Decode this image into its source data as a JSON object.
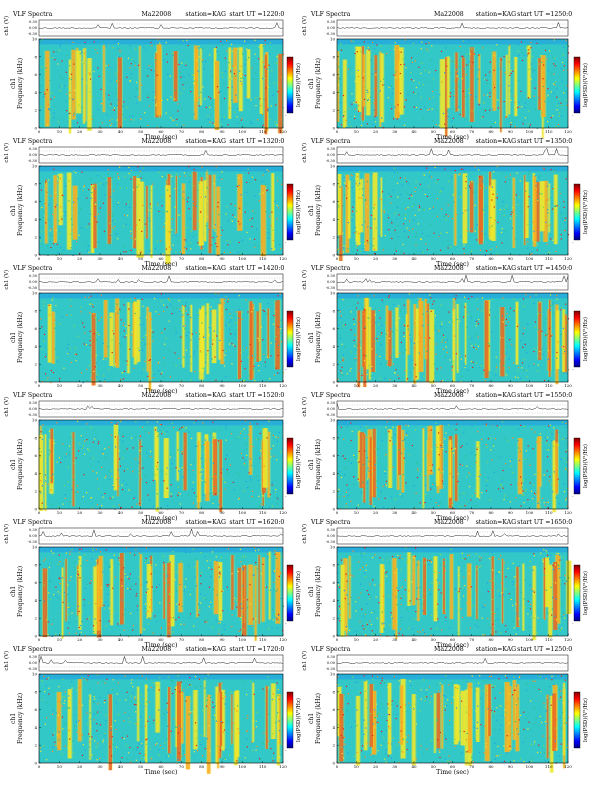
{
  "figure": {
    "colors": {
      "spectrogram_base": "#33c8c8",
      "colorbar": [
        "#000080",
        "#0000ff",
        "#0080ff",
        "#00ffff",
        "#80ff80",
        "#ffff00",
        "#ff8000",
        "#ff0000",
        "#800000"
      ],
      "speckle": [
        "#1f9fe6",
        "#2fbd8a",
        "#84d84a",
        "#f0e82a",
        "#ff8c1a",
        "#e51e1e"
      ]
    }
  },
  "chart_data": [
    {
      "type": "heatmap",
      "title": "VLF Spectra",
      "date": "Ma22008",
      "station": "station=KAG",
      "start_ut": "start UT =1220:0",
      "xlabel": "Time (sec)",
      "ylabel": "Frequency (kHz)",
      "ylabel_prefix": "ch1",
      "top_ylabel": "ch1 (V)",
      "colorbar_label": "log(PSD)(V²/Hz)",
      "xticks": [
        "0",
        "10",
        "20",
        "30",
        "40",
        "50",
        "60",
        "70",
        "80",
        "90",
        "100",
        "110",
        "120"
      ],
      "yticks": [
        "0",
        "2",
        "4",
        "6",
        "8",
        "10"
      ],
      "top_yticks": [
        "0.30",
        "0.00",
        "-0.30"
      ],
      "xlim": [
        0,
        120
      ],
      "ylim": [
        0,
        10
      ],
      "top_ylim": [
        -0.3,
        0.3
      ],
      "grid": false
    },
    {
      "type": "heatmap",
      "title": "VLF Spectra",
      "date": "Ma22008",
      "station": "station=KAG",
      "start_ut": "start UT =1250:0",
      "xlabel": "Time (sec)",
      "ylabel": "Frequency (kHz)",
      "ylabel_prefix": "ch1",
      "top_ylabel": "ch1 (V)",
      "colorbar_label": "log(PSD)(V²/Hz)",
      "xticks": [
        "0",
        "10",
        "20",
        "30",
        "40",
        "50",
        "60",
        "70",
        "80",
        "90",
        "100",
        "110",
        "120"
      ],
      "yticks": [
        "0",
        "2",
        "4",
        "6",
        "8",
        "10"
      ],
      "top_yticks": [
        "0.30",
        "0.00",
        "-0.30"
      ],
      "xlim": [
        0,
        120
      ],
      "ylim": [
        0,
        10
      ],
      "top_ylim": [
        -0.3,
        0.3
      ],
      "grid": false
    },
    {
      "type": "heatmap",
      "title": "VLF Spectra",
      "date": "Ma22008",
      "station": "station=KAG",
      "start_ut": "start UT =1320:0",
      "xlabel": "Time (sec)",
      "ylabel": "Frequency (kHz)",
      "ylabel_prefix": "ch1",
      "top_ylabel": "ch1 (V)",
      "colorbar_label": "log(PSD)(V²/Hz)",
      "xticks": [
        "0",
        "10",
        "20",
        "30",
        "40",
        "50",
        "60",
        "70",
        "80",
        "90",
        "100",
        "110",
        "120"
      ],
      "yticks": [
        "0",
        "2",
        "4",
        "6",
        "8",
        "10"
      ],
      "top_yticks": [
        "0.30",
        "0.00",
        "-0.30"
      ],
      "xlim": [
        0,
        120
      ],
      "ylim": [
        0,
        10
      ],
      "top_ylim": [
        -0.3,
        0.3
      ],
      "grid": false
    },
    {
      "type": "heatmap",
      "title": "VLF Spectra",
      "date": "Ma22008",
      "station": "station=KAG",
      "start_ut": "start UT =1350:0",
      "xlabel": "Time (sec)",
      "ylabel": "Frequency (kHz)",
      "ylabel_prefix": "ch1",
      "top_ylabel": "ch1 (V)",
      "colorbar_label": "log(PSD)(V²/Hz)",
      "xticks": [
        "0",
        "10",
        "20",
        "30",
        "40",
        "50",
        "60",
        "70",
        "80",
        "90",
        "100",
        "110",
        "120"
      ],
      "yticks": [
        "0",
        "2",
        "4",
        "6",
        "8",
        "10"
      ],
      "top_yticks": [
        "0.30",
        "0.00",
        "-0.30"
      ],
      "xlim": [
        0,
        120
      ],
      "ylim": [
        0,
        10
      ],
      "top_ylim": [
        -0.3,
        0.3
      ],
      "grid": false
    },
    {
      "type": "heatmap",
      "title": "VLF Spectra",
      "date": "Ma22008",
      "station": "station=KAG",
      "start_ut": "start UT =1420:0",
      "xlabel": "Time (sec)",
      "ylabel": "Frequency (kHz)",
      "ylabel_prefix": "ch1",
      "top_ylabel": "ch1 (V)",
      "colorbar_label": "log(PSD)(V²/Hz)",
      "xticks": [
        "0",
        "10",
        "20",
        "30",
        "40",
        "50",
        "60",
        "70",
        "80",
        "90",
        "100",
        "110",
        "120"
      ],
      "yticks": [
        "0",
        "2",
        "4",
        "6",
        "8",
        "10"
      ],
      "top_yticks": [
        "0.30",
        "0.00",
        "-0.30"
      ],
      "xlim": [
        0,
        120
      ],
      "ylim": [
        0,
        10
      ],
      "top_ylim": [
        -0.3,
        0.3
      ],
      "grid": false
    },
    {
      "type": "heatmap",
      "title": "VLF Spectra",
      "date": "Ma22008",
      "station": "station=KAG",
      "start_ut": "start UT =1450:0",
      "xlabel": "Time (sec)",
      "ylabel": "Frequency (kHz)",
      "ylabel_prefix": "ch1",
      "top_ylabel": "ch1 (V)",
      "colorbar_label": "log(PSD)(V²/Hz)",
      "xticks": [
        "0",
        "10",
        "20",
        "30",
        "40",
        "50",
        "60",
        "70",
        "80",
        "90",
        "100",
        "110",
        "120"
      ],
      "yticks": [
        "0",
        "2",
        "4",
        "6",
        "8",
        "10"
      ],
      "top_yticks": [
        "0.30",
        "0.00",
        "-0.30"
      ],
      "xlim": [
        0,
        120
      ],
      "ylim": [
        0,
        10
      ],
      "top_ylim": [
        -0.3,
        0.3
      ],
      "grid": false
    },
    {
      "type": "heatmap",
      "title": "VLF Spectra",
      "date": "Ma22008",
      "station": "station=KAG",
      "start_ut": "start UT =1520:0",
      "xlabel": "Time (sec)",
      "ylabel": "Frequency (kHz)",
      "ylabel_prefix": "ch1",
      "top_ylabel": "ch1 (V)",
      "colorbar_label": "log(PSD)(V²/Hz)",
      "xticks": [
        "0",
        "10",
        "20",
        "30",
        "40",
        "50",
        "60",
        "70",
        "80",
        "90",
        "100",
        "110",
        "120"
      ],
      "yticks": [
        "0",
        "2",
        "4",
        "6",
        "8",
        "10"
      ],
      "top_yticks": [
        "0.30",
        "0.00",
        "-0.30"
      ],
      "xlim": [
        0,
        120
      ],
      "ylim": [
        0,
        10
      ],
      "top_ylim": [
        -0.3,
        0.3
      ],
      "grid": false
    },
    {
      "type": "heatmap",
      "title": "VLF Spectra",
      "date": "Ma22008",
      "station": "station=KAG",
      "start_ut": "start UT =1550:0",
      "xlabel": "Time (sec)",
      "ylabel": "Frequency (kHz)",
      "ylabel_prefix": "ch1",
      "top_ylabel": "ch1 (V)",
      "colorbar_label": "log(PSD)(V²/Hz)",
      "xticks": [
        "0",
        "10",
        "20",
        "30",
        "40",
        "50",
        "60",
        "70",
        "80",
        "90",
        "100",
        "110",
        "120"
      ],
      "yticks": [
        "0",
        "2",
        "4",
        "6",
        "8",
        "10"
      ],
      "top_yticks": [
        "0.30",
        "0.00",
        "-0.30"
      ],
      "xlim": [
        0,
        120
      ],
      "ylim": [
        0,
        10
      ],
      "top_ylim": [
        -0.3,
        0.3
      ],
      "grid": false
    },
    {
      "type": "heatmap",
      "title": "VLF Spectra",
      "date": "Ma22008",
      "station": "station=KAG",
      "start_ut": "start UT =1620:0",
      "xlabel": "Time (sec)",
      "ylabel": "Frequency (kHz)",
      "ylabel_prefix": "ch1",
      "top_ylabel": "ch1 (V)",
      "colorbar_label": "log(PSD)(V²/Hz)",
      "xticks": [
        "0",
        "10",
        "20",
        "30",
        "40",
        "50",
        "60",
        "70",
        "80",
        "90",
        "100",
        "110",
        "120"
      ],
      "yticks": [
        "0",
        "2",
        "4",
        "6",
        "8",
        "10"
      ],
      "top_yticks": [
        "0.30",
        "0.00",
        "-0.30"
      ],
      "xlim": [
        0,
        120
      ],
      "ylim": [
        0,
        10
      ],
      "top_ylim": [
        -0.3,
        0.3
      ],
      "grid": false
    },
    {
      "type": "heatmap",
      "title": "VLF Spectra",
      "date": "Ma22008",
      "station": "station=KAG",
      "start_ut": "start UT =1650:0",
      "xlabel": "Time (sec)",
      "ylabel": "Frequency (kHz)",
      "ylabel_prefix": "ch1",
      "top_ylabel": "ch1 (V)",
      "colorbar_label": "log(PSD)(V²/Hz)",
      "xticks": [
        "0",
        "10",
        "20",
        "30",
        "40",
        "50",
        "60",
        "70",
        "80",
        "90",
        "100",
        "110",
        "120"
      ],
      "yticks": [
        "0",
        "2",
        "4",
        "6",
        "8",
        "10"
      ],
      "top_yticks": [
        "0.30",
        "0.00",
        "-0.30"
      ],
      "xlim": [
        0,
        120
      ],
      "ylim": [
        0,
        10
      ],
      "top_ylim": [
        -0.3,
        0.3
      ],
      "grid": false
    },
    {
      "type": "heatmap",
      "title": "VLF Spectra",
      "date": "Ma22008",
      "station": "station=KAG",
      "start_ut": "start UT =1720:0",
      "xlabel": "Time (sec)",
      "ylabel": "Frequency (kHz)",
      "ylabel_prefix": "ch1",
      "top_ylabel": "ch1 (V)",
      "colorbar_label": "log(PSD)(V²/Hz)",
      "xticks": [
        "0",
        "10",
        "20",
        "30",
        "40",
        "50",
        "60",
        "70",
        "80",
        "90",
        "100",
        "110",
        "120"
      ],
      "yticks": [
        "0",
        "2",
        "4",
        "6",
        "8",
        "10"
      ],
      "top_yticks": [
        "0.30",
        "0.00",
        "-0.30"
      ],
      "xlim": [
        0,
        120
      ],
      "ylim": [
        0,
        10
      ],
      "top_ylim": [
        -0.3,
        0.3
      ],
      "grid": false
    },
    {
      "type": "heatmap",
      "title": "VLF Spectra",
      "date": "Ma22008",
      "station": "station=KAG",
      "start_ut": "start UT =1250:0",
      "xlabel": "Time (sec)",
      "ylabel": "Frequency (kHz)",
      "ylabel_prefix": "ch1",
      "top_ylabel": "ch1 (V)",
      "colorbar_label": "log(PSD)(V²/Hz)",
      "xticks": [
        "0",
        "10",
        "20",
        "30",
        "40",
        "50",
        "60",
        "70",
        "80",
        "90",
        "100",
        "110",
        "120"
      ],
      "yticks": [
        "0",
        "2",
        "4",
        "6",
        "8",
        "10"
      ],
      "top_yticks": [
        "0.30",
        "0.00",
        "-0.30"
      ],
      "xlim": [
        0,
        120
      ],
      "ylim": [
        0,
        10
      ],
      "top_ylim": [
        -0.3,
        0.3
      ],
      "grid": false
    }
  ]
}
